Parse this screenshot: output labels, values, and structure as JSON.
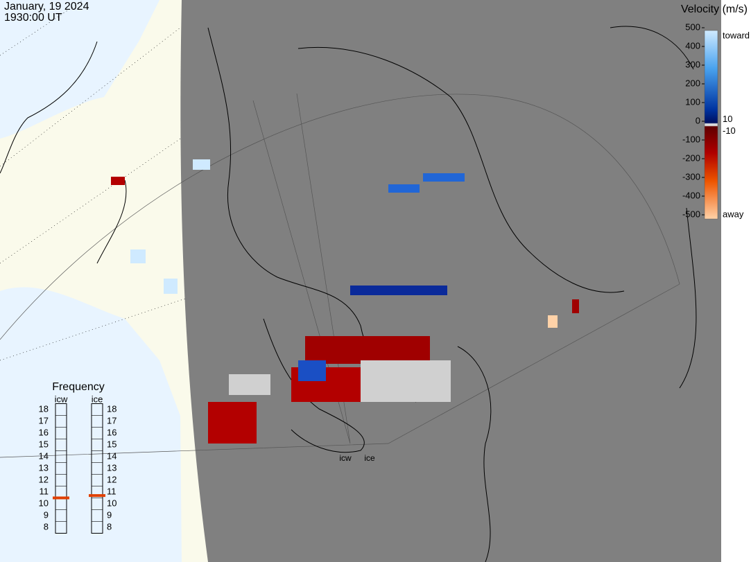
{
  "header": {
    "date": "January, 19 2024",
    "time": "1930:00 UT"
  },
  "legend": {
    "title": "Velocity (m/s)",
    "ticks": [
      500,
      400,
      300,
      200,
      100,
      0,
      -100,
      -200,
      -300,
      -400,
      -500
    ],
    "near_zero": [
      10,
      -10
    ],
    "toward": "toward",
    "away": "away"
  },
  "frequency": {
    "title": "Frequency",
    "ticks": [
      18,
      17,
      16,
      15,
      14,
      13,
      12,
      11,
      10,
      9,
      8
    ],
    "panels": [
      {
        "name": "icw",
        "value": 10.5
      },
      {
        "name": "ice",
        "value": 10.7
      }
    ]
  },
  "radars": [
    "icw",
    "ice"
  ]
}
